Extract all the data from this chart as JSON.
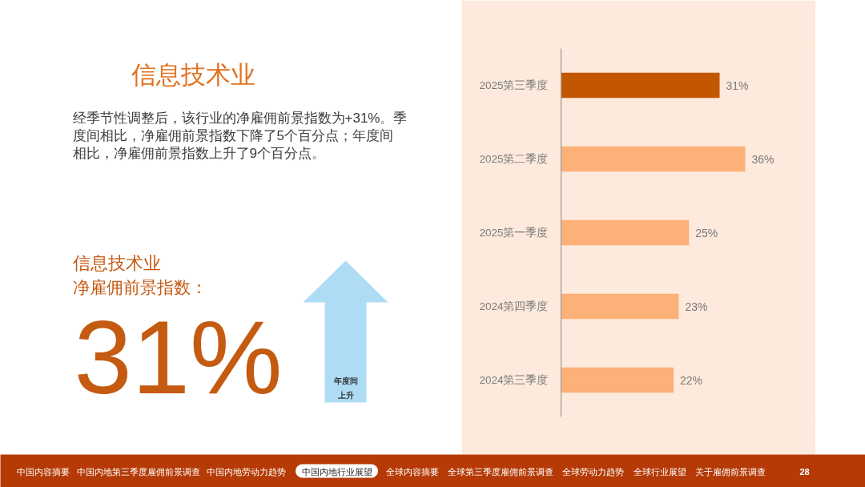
{
  "chart_data": {
    "type": "bar",
    "orientation": "horizontal",
    "title": "信息技术业",
    "subtitle": "经季节性调整后，该行业的净雇佣前景指数为+31%。季度间相比，净雇佣前景指数下降了5个百分点；年度间相比，净雇佣前景指数上升了9个百分点。",
    "categories": [
      "2025第三季度",
      "2025第二季度",
      "2025第一季度",
      "2024第四季度",
      "2024第三季度"
    ],
    "values": [
      31,
      36,
      25,
      23,
      22
    ],
    "colors": [
      "#c35600",
      "#fdb077",
      "#fdb077",
      "#fdb077",
      "#fdb077"
    ],
    "value_labels": [
      "31%",
      "36%",
      "25%",
      "23%",
      "22%"
    ],
    "annotations": [
      "信息技术业",
      "净雇佣前景指数：",
      "31%",
      "年度间",
      "上升",
      "中国内容摘要",
      "中国内地第三季度雇佣前景调查",
      "中国内地劳动力趋势",
      "中国内地行业展望",
      "全球内容摘要",
      "全球第三季度雇佣前景调查",
      "全球劳动力趋势",
      "全球行业展望",
      "关于雇佣前景调查",
      "28"
    ]
  }
}
